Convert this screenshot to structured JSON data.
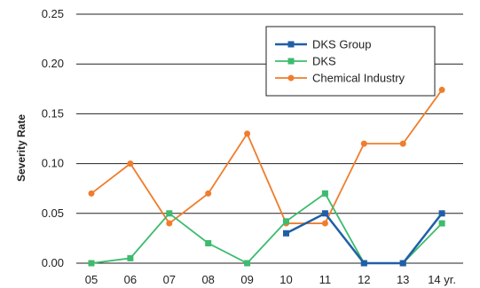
{
  "chart_data": {
    "type": "line",
    "ylabel": "Severity Rate",
    "xlabel": "",
    "ylim": [
      0,
      0.25
    ],
    "yticks": [
      "0.00",
      "0.05",
      "0.10",
      "0.15",
      "0.20",
      "0.25"
    ],
    "ytick_values": [
      0,
      0.05,
      0.1,
      0.15,
      0.2,
      0.25
    ],
    "categories": [
      "05",
      "06",
      "07",
      "08",
      "09",
      "10",
      "11",
      "12",
      "13",
      "14 yr."
    ],
    "grid": true,
    "legend_position": "top-right",
    "series": [
      {
        "name": "DKS Group",
        "color": "#1f5fa6",
        "marker": "square",
        "values": [
          null,
          null,
          null,
          null,
          null,
          0.03,
          0.05,
          0.0,
          0.0,
          0.05
        ]
      },
      {
        "name": "DKS",
        "color": "#3dbb6e",
        "marker": "square",
        "values": [
          0.0,
          0.005,
          0.05,
          0.02,
          0.0,
          0.042,
          0.07,
          0.0,
          0.0,
          0.04
        ]
      },
      {
        "name": "Chemical Industry",
        "color": "#ef7d2d",
        "marker": "circle",
        "values": [
          0.07,
          0.1,
          0.04,
          0.07,
          0.13,
          0.04,
          0.04,
          0.12,
          0.12,
          0.174
        ]
      }
    ]
  }
}
